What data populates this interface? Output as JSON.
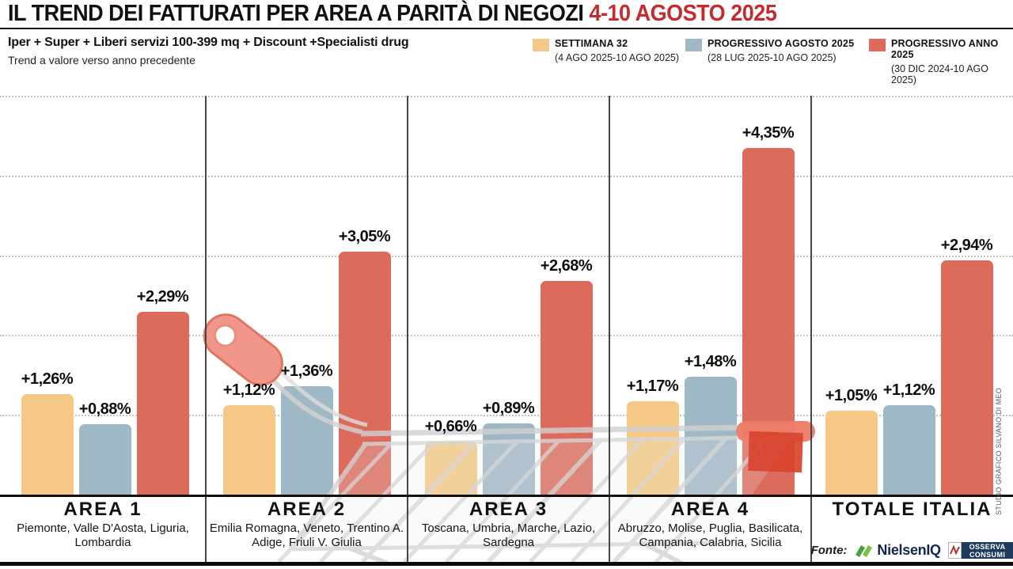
{
  "header": {
    "title_black": "IL TREND DEI FATTURATI PER AREA A PARITÀ DI NEGOZI ",
    "title_red": "4-10 AGOSTO 2025",
    "subtitle_bold": "Iper + Super + Liberi servizi 100-399 mq + Discount +Specialisti drug",
    "subtitle_regular": "Trend a valore verso anno precedente"
  },
  "legend": [
    {
      "label": "SETTIMANA 32",
      "sublabel": "(4 AGO 2025-10 AGO 2025)",
      "color": "#F5C985"
    },
    {
      "label": "PROGRESSIVO AGOSTO 2025",
      "sublabel": "(28 LUG 2025-10 AGO 2025)",
      "color": "#9FB8C6"
    },
    {
      "label": "PROGRESSIVO ANNO 2025",
      "sublabel": "(30 DIC 2024-10 AGO 2025)",
      "color": "#DC6B5C"
    }
  ],
  "chart_data": {
    "type": "bar",
    "title": "IL TREND DEI FATTURATI PER AREA A PARITÀ DI NEGOZI 4-10 AGOSTO 2025",
    "categories": [
      "AREA 1",
      "AREA 2",
      "AREA 3",
      "AREA 4",
      "TOTALE ITALIA"
    ],
    "regions": [
      "Piemonte, Valle D'Aosta, Liguria, Lombardia",
      "Emilia Romagna, Veneto, Trentino A. Adige, Friuli V. Giulia",
      "Toscana, Umbria, Marche, Lazio, Sardegna",
      "Abruzzo, Molise, Puglia, Basilicata, Campania, Calabria, Sicilia",
      ""
    ],
    "series": [
      {
        "name": "SETTIMANA 32",
        "color": "#F5C985",
        "values": [
          1.26,
          1.12,
          0.66,
          1.17,
          1.05
        ],
        "labels": [
          "+1,26%",
          "+1,12%",
          "+0,66%",
          "+1,17%",
          "+1,05%"
        ]
      },
      {
        "name": "PROGRESSIVO AGOSTO 2025",
        "color": "#9FB8C6",
        "values": [
          0.88,
          1.36,
          0.89,
          1.48,
          1.12
        ],
        "labels": [
          "+0,88%",
          "+1,36%",
          "+0,89%",
          "+1,48%",
          "+1,12%"
        ]
      },
      {
        "name": "PROGRESSIVO ANNO 2025",
        "color": "#DC6B5C",
        "values": [
          2.29,
          3.05,
          2.68,
          4.35,
          2.94
        ],
        "labels": [
          "+2,29%",
          "+3,05%",
          "+2,68%",
          "+4,35%",
          "+2,94%"
        ]
      }
    ],
    "xlabel": "",
    "ylabel": "",
    "unit": "%",
    "ylim": [
      0,
      5
    ],
    "grid": "horizontal dotted, step 1%",
    "legend_position": "top-right"
  },
  "footer": {
    "fonte_label": "Fonte:",
    "nielsen_text": "NielsenIQ",
    "osserva_text": "OSSERVA CONSUMI"
  },
  "credit": "STUDIO GRAFICO SILVANO DI MEO"
}
